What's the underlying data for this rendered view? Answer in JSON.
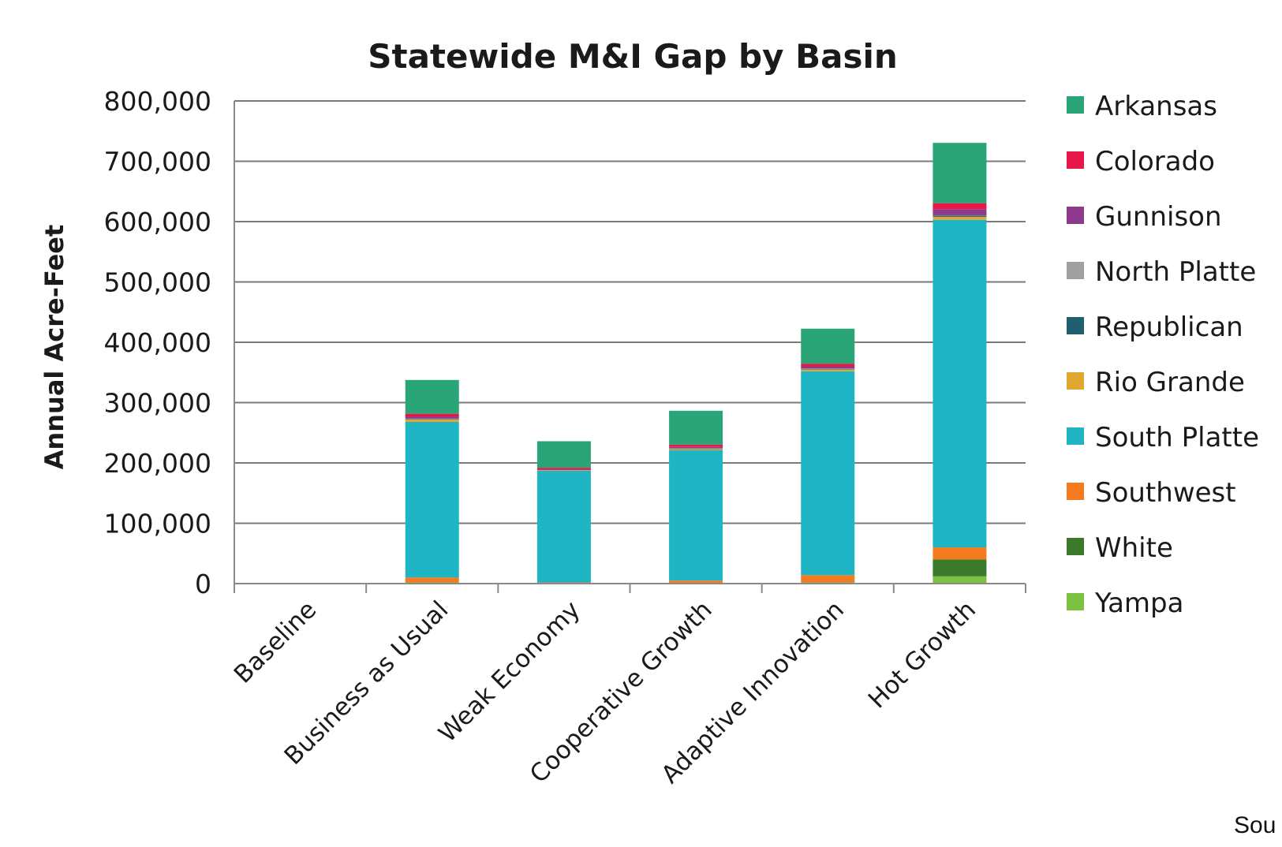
{
  "chart_data": {
    "type": "bar",
    "stacked": true,
    "title": "Statewide M&I Gap by Basin",
    "xlabel": "",
    "ylabel": "Annual Acre-Feet",
    "ylim": [
      0,
      800000
    ],
    "yticks": [
      0,
      100000,
      200000,
      300000,
      400000,
      500000,
      600000,
      700000,
      800000
    ],
    "ytick_labels": [
      "0",
      "100,000",
      "200,000",
      "300,000",
      "400,000",
      "500,000",
      "600,000",
      "700,000",
      "800,000"
    ],
    "grid": true,
    "legend_position": "right",
    "categories": [
      "Baseline",
      "Business as Usual",
      "Weak Economy",
      "Cooperative Growth",
      "Adaptive Innovation",
      "Hot Growth"
    ],
    "series": [
      {
        "name": "Yampa",
        "color": "#7dc142",
        "values": [
          0,
          2000,
          0,
          1000,
          2000,
          12000
        ]
      },
      {
        "name": "White",
        "color": "#3a7a2a",
        "values": [
          0,
          0,
          0,
          0,
          0,
          28000
        ]
      },
      {
        "name": "Southwest",
        "color": "#f47b20",
        "values": [
          0,
          8000,
          2000,
          4000,
          12000,
          20000
        ]
      },
      {
        "name": "South Platte",
        "color": "#1fb5c4",
        "values": [
          0,
          258000,
          185000,
          216000,
          338000,
          543000
        ]
      },
      {
        "name": "Rio Grande",
        "color": "#e0a82e",
        "values": [
          0,
          4000,
          1000,
          2000,
          3000,
          5000
        ]
      },
      {
        "name": "Republican",
        "color": "#1f5f6f",
        "values": [
          0,
          1000,
          0,
          1000,
          1000,
          2000
        ]
      },
      {
        "name": "North Platte",
        "color": "#a0a0a0",
        "values": [
          0,
          500,
          0,
          500,
          500,
          500
        ]
      },
      {
        "name": "Gunnison",
        "color": "#8e3a8c",
        "values": [
          0,
          3000,
          1000,
          2000,
          3000,
          10000
        ]
      },
      {
        "name": "Colorado",
        "color": "#e8174a",
        "values": [
          0,
          5000,
          3000,
          4000,
          5000,
          10000
        ]
      },
      {
        "name": "Arkansas",
        "color": "#2aa577",
        "values": [
          0,
          56000,
          44000,
          56000,
          58000,
          100000
        ]
      }
    ],
    "legend": [
      "Arkansas",
      "Colorado",
      "Gunnison",
      "North Platte",
      "Republican",
      "Rio Grande",
      "South Platte",
      "Southwest",
      "White",
      "Yampa"
    ]
  },
  "source_text": "Sou"
}
